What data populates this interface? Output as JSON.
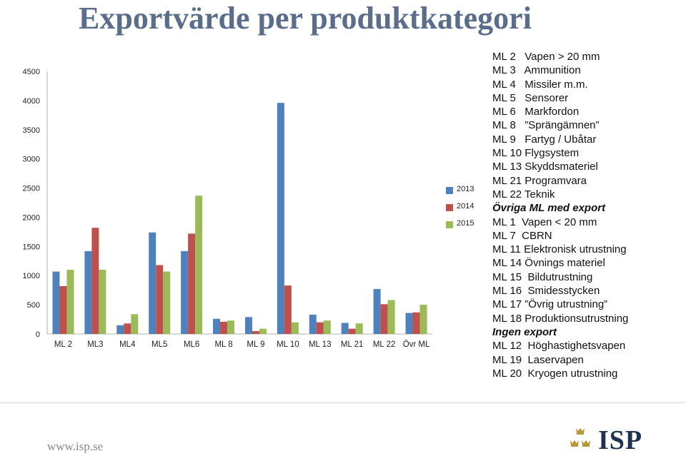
{
  "page": {
    "title": "Exportvärde per produktkategori",
    "footer_url": "www.isp.se",
    "logo_text": "ISP"
  },
  "chart_data": {
    "type": "bar",
    "categories": [
      "ML 2",
      "ML3",
      "ML4",
      "ML5",
      "ML6",
      "ML 8",
      "ML 9",
      "ML 10",
      "ML 13",
      "ML 21",
      "ML 22",
      "Övr ML"
    ],
    "series": [
      {
        "name": "2013",
        "color": "#4f81bd",
        "values": [
          1070,
          1420,
          150,
          1740,
          1420,
          260,
          290,
          3960,
          330,
          190,
          770,
          360
        ]
      },
      {
        "name": "2014",
        "color": "#c0504d",
        "values": [
          820,
          1820,
          180,
          1180,
          1720,
          210,
          50,
          830,
          200,
          90,
          510,
          370
        ]
      },
      {
        "name": "2015",
        "color": "#9bbb59",
        "values": [
          1100,
          1100,
          340,
          1070,
          2370,
          230,
          90,
          200,
          230,
          180,
          580,
          500
        ]
      }
    ],
    "yticks": [
      0,
      500,
      1000,
      1500,
      2000,
      2500,
      3000,
      3500,
      4000,
      4500
    ],
    "ylim": [
      0,
      4500
    ],
    "grid": false,
    "legend": "right",
    "title": "",
    "xlabel": "",
    "ylabel": ""
  },
  "categories_list": [
    {
      "text": "ML 2   Vapen > 20 mm",
      "heading": false
    },
    {
      "text": "ML 3   Ammunition",
      "heading": false
    },
    {
      "text": "ML 4   Missiler m.m.",
      "heading": false
    },
    {
      "text": "ML 5   Sensorer",
      "heading": false
    },
    {
      "text": "ML 6   Markfordon",
      "heading": false
    },
    {
      "text": "ML 8   ”Sprängämnen”",
      "heading": false
    },
    {
      "text": "ML 9   Fartyg / Ubåtar",
      "heading": false
    },
    {
      "text": "ML 10 Flygsystem",
      "heading": false
    },
    {
      "text": "ML 13 Skyddsmateriel",
      "heading": false
    },
    {
      "text": "ML 21 Programvara",
      "heading": false
    },
    {
      "text": "ML 22 Teknik",
      "heading": false
    },
    {
      "text": "Övriga ML med export",
      "heading": true
    },
    {
      "text": "ML 1  Vapen < 20 mm",
      "heading": false
    },
    {
      "text": "ML 7  CBRN",
      "heading": false
    },
    {
      "text": "ML 11 Elektronisk utrustning",
      "heading": false
    },
    {
      "text": "ML 14 Övnings materiel",
      "heading": false
    },
    {
      "text": "ML 15  Bildutrustning",
      "heading": false
    },
    {
      "text": "ML 16  Smidesstycken",
      "heading": false
    },
    {
      "text": "ML 17 ”Övrig utrustning”",
      "heading": false
    },
    {
      "text": "ML 18 Produktionsutrustning",
      "heading": false
    },
    {
      "text": "Ingen export",
      "heading": true
    },
    {
      "text": "ML 12  Höghastighetsvapen",
      "heading": false
    },
    {
      "text": "ML 19  Laservapen",
      "heading": false
    },
    {
      "text": "ML 20  Kryogen utrustning",
      "heading": false
    }
  ]
}
